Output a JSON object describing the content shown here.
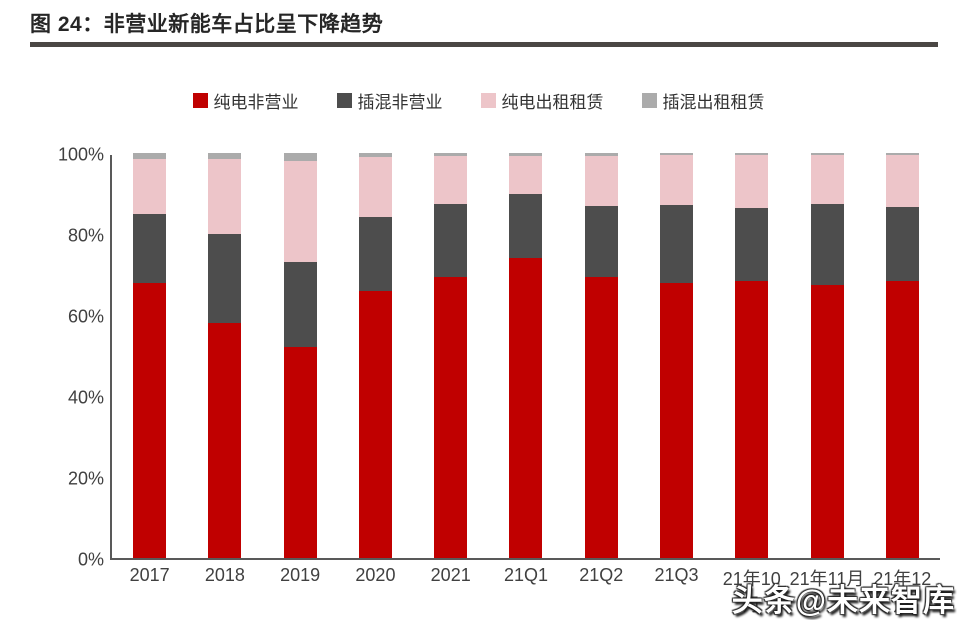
{
  "figure": {
    "title": "图 24：非营业新能车占比呈下降趋势",
    "watermark": "头条@未来智库"
  },
  "colors": {
    "title_text": "#262626",
    "title_rule": "#4a4744",
    "axis_line": "#595959",
    "axis_text": "#404040",
    "background": "#ffffff"
  },
  "chart_data": {
    "type": "bar",
    "stacked": true,
    "unit": "%",
    "title": "图 24：非营业新能车占比呈下降趋势",
    "xlabel": "",
    "ylabel": "",
    "ylim": [
      0,
      100
    ],
    "grid": false,
    "legend_position": "top",
    "y_ticks": [
      "0%",
      "20%",
      "40%",
      "60%",
      "80%",
      "100%"
    ],
    "categories": [
      "2017",
      "2018",
      "2019",
      "2020",
      "2021",
      "21Q1",
      "21Q2",
      "21Q3",
      "21年10月",
      "21年11月",
      "21年12月"
    ],
    "series": [
      {
        "name": "纯电非营业",
        "color": "#C00000",
        "values": [
          68.0,
          58.0,
          52.0,
          66.0,
          69.5,
          74.0,
          69.5,
          68.0,
          68.5,
          67.5,
          68.5
        ]
      },
      {
        "name": "插混非营业",
        "color": "#4D4D4D",
        "values": [
          17.0,
          22.0,
          21.0,
          18.2,
          17.8,
          16.0,
          17.5,
          19.2,
          18.0,
          20.0,
          18.3
        ]
      },
      {
        "name": "纯电出租租赁",
        "color": "#EDC5C9",
        "values": [
          13.5,
          18.5,
          25.0,
          14.8,
          11.9,
          9.3,
          12.3,
          12.3,
          13.0,
          12.0,
          12.7
        ]
      },
      {
        "name": "插混出租租赁",
        "color": "#ABABAB",
        "values": [
          1.5,
          1.5,
          2.0,
          1.0,
          0.8,
          0.7,
          0.7,
          0.5,
          0.5,
          0.5,
          0.5
        ]
      }
    ]
  }
}
